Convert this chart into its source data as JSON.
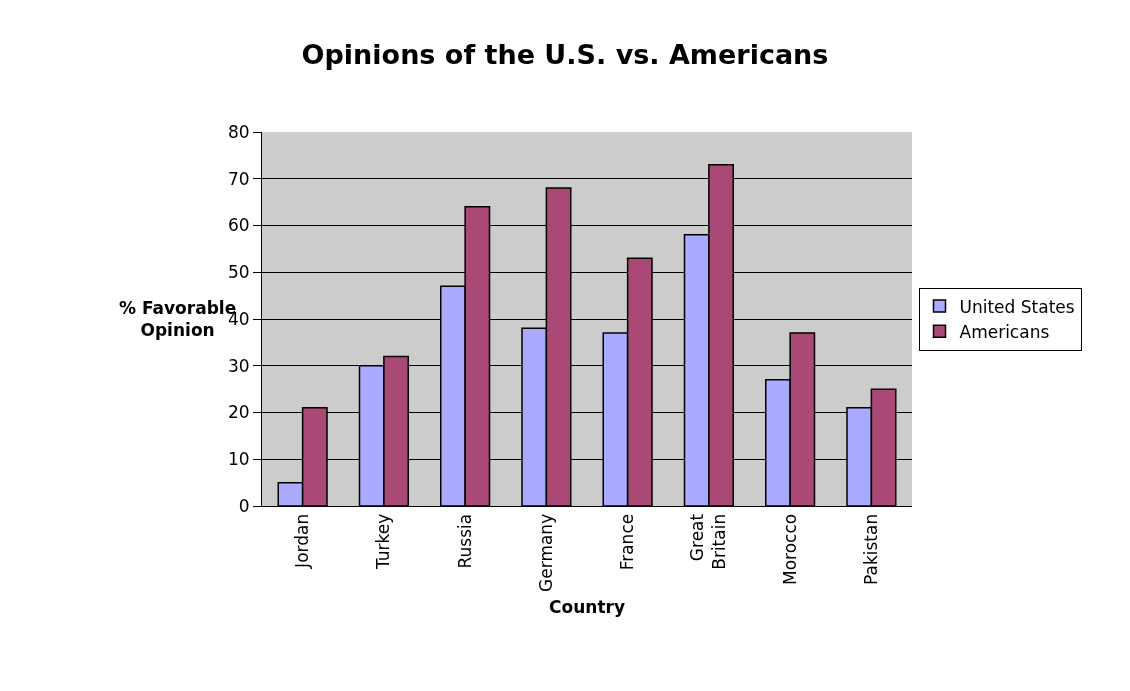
{
  "chart_data": {
    "type": "bar",
    "title": "Opinions of the U.S. vs. Americans",
    "xlabel": "Country",
    "ylabel": "% Favorable Opinion",
    "categories": [
      "Jordan",
      "Turkey",
      "Russia",
      "Germany",
      "France",
      "Great Britain",
      "Morocco",
      "Pakistan"
    ],
    "series": [
      {
        "name": "United States",
        "color": "#aaaaff",
        "values": [
          5,
          30,
          47,
          38,
          37,
          58,
          27,
          21
        ]
      },
      {
        "name": "Americans",
        "color": "#aa4876",
        "values": [
          21,
          32,
          64,
          68,
          53,
          73,
          37,
          25
        ]
      }
    ],
    "ylim": [
      0,
      80
    ],
    "yticks": [
      0,
      10,
      20,
      30,
      40,
      50,
      60,
      70,
      80
    ],
    "grid": "y",
    "legend": "right"
  }
}
